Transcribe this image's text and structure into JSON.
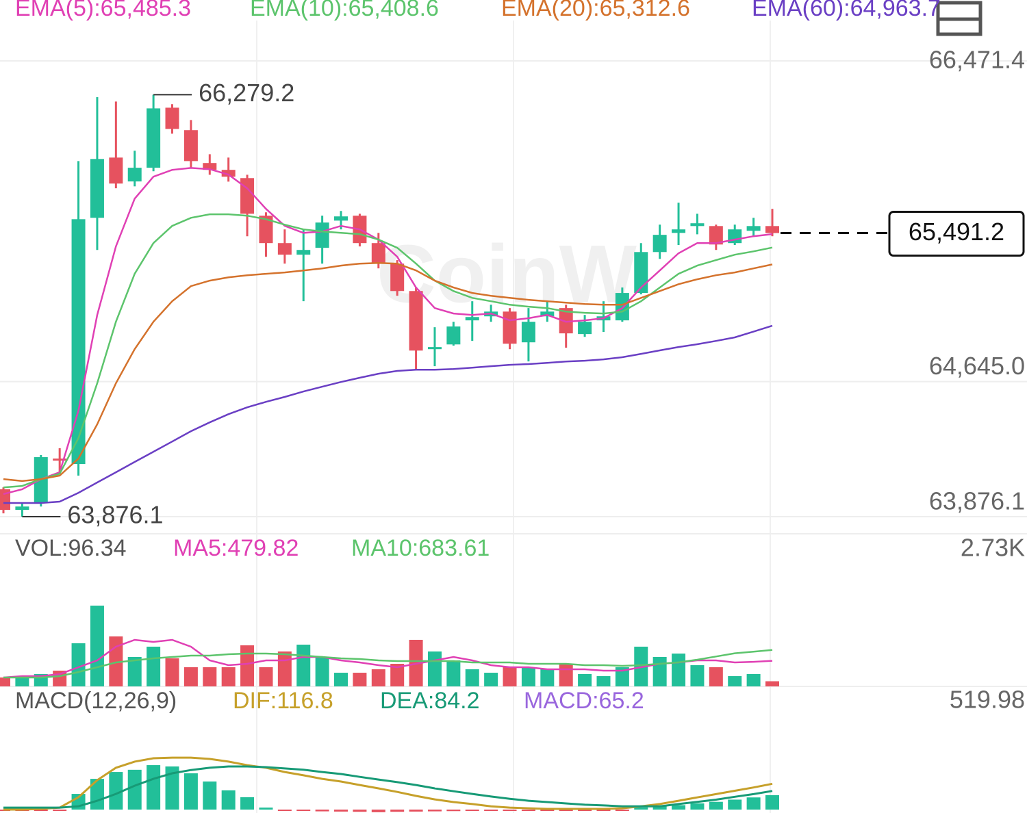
{
  "chart_data": [
    {
      "type": "candlestick",
      "watermark": "CoinW",
      "up_color": "#22bf99",
      "down_color": "#e6525f",
      "open": [
        64032,
        63915,
        63954,
        64207,
        64176,
        65578,
        65921,
        65785,
        65863,
        66205,
        66077,
        65890,
        65851,
        65804,
        65590,
        65434,
        65368,
        65407,
        65562,
        65590,
        65434,
        65317,
        65161,
        64830,
        64857,
        64994,
        65017,
        65044,
        64869,
        65017,
        65064,
        64916,
        64994,
        64994,
        65150,
        65383,
        65492,
        65531,
        65531,
        65434,
        65504,
        65531
      ],
      "high": [
        64043,
        63954,
        64227,
        64266,
        65901,
        66265,
        66240,
        65960,
        66279.2,
        66225,
        66135,
        65940,
        65921,
        65823,
        65609,
        65512,
        65512,
        65590,
        65617,
        65601,
        65492,
        65337,
        65181,
        64955,
        64986,
        65103,
        65083,
        65064,
        65064,
        65103,
        65083,
        65025,
        65103,
        65181,
        65434,
        65539,
        65664,
        65601,
        65539,
        65539,
        65578,
        65629
      ],
      "low": [
        63895,
        63876.1,
        63934,
        64129,
        64110,
        65395,
        65746,
        65757,
        65843,
        66057,
        65862,
        65823,
        65784,
        65473,
        65356,
        65317,
        65103,
        65317,
        65512,
        65415,
        65290,
        65134,
        64713,
        64733,
        64850,
        64877,
        64986,
        64830,
        64760,
        64986,
        64838,
        64900,
        64928,
        64986,
        65142,
        65344,
        65423,
        65484,
        65395,
        65423,
        65473,
        65473
      ],
      "close": [
        63915,
        63934,
        64215,
        64196,
        65570,
        65913,
        65773,
        65863,
        66201,
        66084,
        65901,
        65851,
        65812,
        65601,
        65434,
        65368,
        65395,
        65551,
        65586,
        65434,
        65317,
        65161,
        64822,
        64842,
        64959,
        65013,
        65044,
        64861,
        64986,
        65044,
        64920,
        64986,
        65017,
        65150,
        65383,
        65481,
        65512,
        65547,
        65426,
        65512,
        65531,
        65491.2
      ],
      "series": [
        {
          "name": "EMA(5):65,485.3",
          "color": "#e040b4",
          "values": [
            64005,
            64032,
            64090,
            64129,
            64480,
            65025,
            65415,
            65687,
            65812,
            65851,
            65862,
            65855,
            65824,
            65746,
            65629,
            65532,
            65492,
            65500,
            65532,
            65512,
            65454,
            65356,
            65181,
            65064,
            65033,
            65025,
            65033,
            64994,
            65006,
            65025,
            64986,
            64994,
            65006,
            65064,
            65181,
            65278,
            65376,
            65434,
            65434,
            65454,
            65473,
            65485.3
          ]
        },
        {
          "name": "EMA(10):65,408.6",
          "color": "#5cc46c",
          "values": [
            64043,
            64051,
            64090,
            64121,
            64324,
            64636,
            64986,
            65259,
            65434,
            65532,
            65578,
            65598,
            65598,
            65590,
            65570,
            65539,
            65512,
            65500,
            65492,
            65485,
            65454,
            65407,
            65317,
            65220,
            65161,
            65122,
            65103,
            65083,
            65072,
            65064,
            65044,
            65037,
            65033,
            65044,
            65103,
            65181,
            65259,
            65306,
            65337,
            65368,
            65387,
            65408.6
          ]
        },
        {
          "name": "EMA(20):65,312.6",
          "color": "#d4722c",
          "values": [
            64090,
            64079,
            64090,
            64110,
            64207,
            64402,
            64636,
            64830,
            64986,
            65103,
            65189,
            65220,
            65239,
            65251,
            65259,
            65267,
            65278,
            65290,
            65306,
            65317,
            65321,
            65317,
            65278,
            65220,
            65181,
            65150,
            65134,
            65122,
            65111,
            65103,
            65095,
            65087,
            65083,
            65083,
            65122,
            65161,
            65200,
            65228,
            65251,
            65267,
            65290,
            65312.6
          ]
        },
        {
          "name": "EMA(60):64,963.7",
          "color": "#6a3fc4",
          "values": [
            63954,
            63954,
            63954,
            63962,
            64012,
            64071,
            64129,
            64188,
            64246,
            64304,
            64363,
            64413,
            64460,
            64499,
            64530,
            64558,
            64589,
            64616,
            64643,
            64667,
            64690,
            64706,
            64713,
            64713,
            64717,
            64725,
            64733,
            64741,
            64745,
            64752,
            64760,
            64764,
            64772,
            64784,
            64803,
            64823,
            64842,
            64858,
            64877,
            64897,
            64930,
            64963.7
          ]
        }
      ],
      "ylim": [
        63876.1,
        66471.4
      ],
      "yticks": [
        {
          "value": 66471.4,
          "label": "66,471.4"
        },
        {
          "value": 64645.0,
          "label": "64,645.0"
        },
        {
          "value": 63876.1,
          "label": "63,876.1"
        }
      ],
      "annotations": [
        {
          "value": 66279.2,
          "label": "66,279.2"
        },
        {
          "value": 63876.1,
          "label": "63,876.1"
        }
      ],
      "last_price": {
        "value": 65491.2,
        "label": "65,491.2"
      }
    },
    {
      "type": "bar",
      "title": "VOL:96.34",
      "values": [
        167,
        167,
        231,
        295,
        808,
        1513,
        936,
        551,
        744,
        526,
        359,
        359,
        359,
        769,
        359,
        654,
        782,
        551,
        256,
        256,
        321,
        423,
        872,
        654,
        487,
        321,
        256,
        359,
        359,
        321,
        423,
        231,
        192,
        359,
        744,
        551,
        615,
        397,
        359,
        192,
        231,
        96.34
      ],
      "series": [
        {
          "name": "MA5:479.82",
          "color": "#e040b4",
          "values": [
            167,
            192,
            192,
            231,
            359,
            487,
            744,
            872,
            833,
            872,
            744,
            487,
            397,
            423,
            487,
            487,
            551,
            551,
            487,
            449,
            397,
            359,
            423,
            487,
            551,
            487,
            397,
            359,
            359,
            321,
            321,
            321,
            295,
            295,
            359,
            423,
            449,
            487,
            487,
            449,
            460,
            479.82
          ]
        },
        {
          "name": "MA10:683.61",
          "color": "#5cc46c",
          "values": [
            167,
            167,
            167,
            192,
            269,
            359,
            449,
            487,
            526,
            551,
            577,
            577,
            603,
            615,
            615,
            603,
            577,
            551,
            526,
            513,
            487,
            474,
            474,
            474,
            474,
            449,
            449,
            449,
            423,
            423,
            423,
            397,
            397,
            385,
            397,
            423,
            450,
            500,
            560,
            620,
            650,
            683.61
          ]
        }
      ],
      "ylim": [
        0,
        2730
      ],
      "yticks": [
        {
          "value": 2730,
          "label": "2.73K"
        }
      ]
    },
    {
      "type": "macd",
      "title": "MACD(12,26,9)",
      "series": [
        {
          "name": "DIF:116.8",
          "color": "#c6a02a",
          "values": [
            0,
            0,
            3,
            9,
            56,
            133,
            189,
            217,
            232,
            235,
            235,
            229,
            217,
            201,
            189,
            170,
            155,
            139,
            127,
            111,
            96,
            80,
            62,
            46,
            34,
            25,
            15,
            9,
            6,
            3,
            3,
            3,
            3,
            6,
            15,
            25,
            40,
            55,
            70,
            85,
            100,
            116.8
          ]
        },
        {
          "name": "DEA:84.2",
          "color": "#179a76",
          "values": [
            9,
            9,
            9,
            9,
            15,
            40,
            71,
            108,
            139,
            164,
            179,
            189,
            195,
            195,
            192,
            186,
            180,
            170,
            161,
            148,
            136,
            124,
            111,
            96,
            83,
            71,
            59,
            49,
            40,
            34,
            28,
            22,
            19,
            15,
            15,
            15,
            25,
            35,
            45,
            58,
            70,
            84.2
          ]
        }
      ],
      "histogram": {
        "name": "MACD:65.2",
        "color": "#9966dd",
        "values": [
          -3,
          -3,
          -2,
          -1,
          71,
          139,
          170,
          180,
          201,
          195,
          164,
          127,
          87,
          56,
          9,
          -5,
          -6,
          -8,
          -9,
          -10,
          -12,
          -10,
          -9,
          -8,
          -7,
          -6,
          -5,
          -5,
          -4,
          -4,
          -3,
          -3,
          -2,
          -2,
          10,
          15,
          20,
          28,
          35,
          45,
          55,
          65.2
        ]
      },
      "ylim": [
        0,
        519.98
      ],
      "yticks": [
        {
          "value": 519.98,
          "label": "519.98"
        }
      ]
    }
  ]
}
